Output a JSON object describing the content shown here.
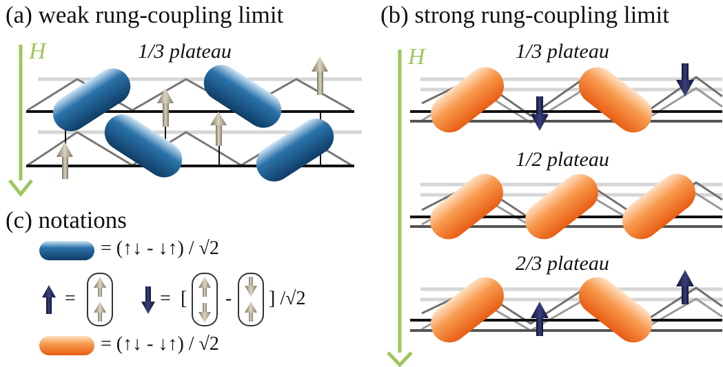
{
  "headings": {
    "a": "(a) weak rung-coupling limit",
    "b": "(b) strong rung-coupling limit",
    "c": "(c) notations"
  },
  "field_label": "H",
  "plateaus": {
    "a": "1/3 plateau",
    "b1": "1/3 plateau",
    "b2": "1/2 plateau",
    "b3": "2/3 plateau"
  },
  "notations": {
    "blue_singlet": "= (↑↓ - ↓↑) / √2",
    "up_equals": "=",
    "down_equals": "=",
    "bracket_open": "[",
    "minus": "-",
    "bracket_close": "] /√2",
    "orange_singlet": "= (↑↓ - ↓↑) / √2"
  },
  "colors": {
    "field_arrow": "#9cc75d",
    "blue_dimer": "#1a5a8c",
    "orange_dimer": "#f07a2a",
    "navy_spin": "#1c2150",
    "beige_spin": "#9a9480"
  }
}
